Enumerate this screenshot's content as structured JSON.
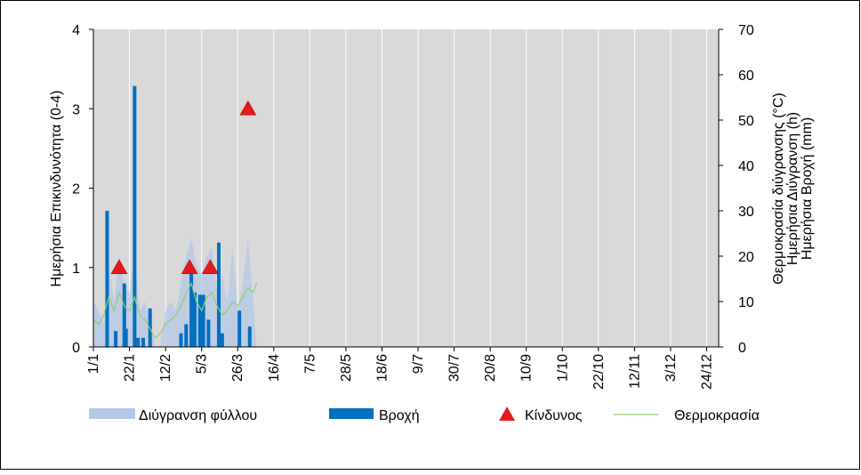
{
  "chart_data": {
    "type": "combo",
    "ylabel": "Ημερήσια Επικινδυνότητα (0-4)",
    "y2label": [
      "Θερμοκρασία διύγρανσης (°C)",
      "Ημερήσια Διύγρανση (h)",
      "Ημερήσια Βροχή (mm)"
    ],
    "xlim": [
      "1/1",
      "31/12"
    ],
    "xticks": [
      "1/1",
      "22/1",
      "12/2",
      "5/3",
      "26/3",
      "16/4",
      "7/5",
      "28/5",
      "18/6",
      "9/7",
      "30/7",
      "20/8",
      "10/9",
      "1/10",
      "22/10",
      "12/11",
      "3/12",
      "24/12"
    ],
    "ylim": [
      0,
      4
    ],
    "yticks": [
      0,
      1,
      2,
      3,
      4
    ],
    "y2lim": [
      0,
      70
    ],
    "y2ticks": [
      0,
      10,
      20,
      30,
      40,
      50,
      60,
      70
    ],
    "grid": true,
    "legend": "bottom",
    "series": [
      {
        "name": "Διύγρανση φύλλου",
        "type": "area",
        "color": "#b4c7e7",
        "axis": "y2",
        "x": [
          "1/1",
          "4/1",
          "7/1",
          "10/1",
          "13/1",
          "16/1",
          "19/1",
          "22/1",
          "25/1",
          "28/1",
          "31/1",
          "3/2",
          "6/2",
          "9/2",
          "12/2",
          "15/2",
          "18/2",
          "21/2",
          "24/2",
          "27/2",
          "2/3",
          "5/3",
          "8/3",
          "11/3",
          "14/3",
          "17/3",
          "20/3",
          "23/3",
          "26/3",
          "29/3",
          "1/4",
          "4/4",
          "6/4"
        ],
        "values": [
          10,
          8,
          5,
          18,
          10,
          20,
          14,
          12,
          20,
          8,
          10,
          6,
          0,
          0,
          8,
          10,
          8,
          14,
          20,
          24,
          18,
          16,
          20,
          22,
          12,
          16,
          10,
          22,
          8,
          14,
          24,
          10,
          0
        ]
      },
      {
        "name": "Βροχή",
        "type": "bar",
        "color": "#0070c0",
        "axis": "y2",
        "x": [
          "9/1",
          "14/1",
          "19/1",
          "20/1",
          "25/1",
          "27/1",
          "30/1",
          "3/2",
          "21/2",
          "24/2",
          "27/2",
          "1/3",
          "4/3",
          "6/3",
          "9/3",
          "15/3",
          "17/3",
          "27/3",
          "2/4"
        ],
        "values": [
          30,
          3.5,
          14,
          4,
          57.5,
          2,
          2,
          8.5,
          3,
          5,
          17,
          12,
          11.5,
          11.5,
          6,
          23,
          3,
          8,
          4.5
        ]
      },
      {
        "name": "Κίνδυνος",
        "type": "scatter",
        "color": "#e31a1c",
        "axis": "y",
        "x": [
          "16/1",
          "26/2",
          "10/3",
          "1/4"
        ],
        "values": [
          1,
          1,
          1,
          3
        ]
      },
      {
        "name": "Θερμοκρασία",
        "type": "line",
        "color": "#8fd16a",
        "axis": "y2",
        "x": [
          "1/1",
          "4/1",
          "7/1",
          "10/1",
          "13/1",
          "16/1",
          "19/1",
          "22/1",
          "25/1",
          "28/1",
          "31/1",
          "3/2",
          "6/2",
          "9/2",
          "12/2",
          "15/2",
          "18/2",
          "21/2",
          "24/2",
          "27/2",
          "2/3",
          "5/3",
          "8/3",
          "11/3",
          "14/3",
          "17/3",
          "20/3",
          "23/3",
          "26/3",
          "29/3",
          "1/4",
          "4/4",
          "6/4"
        ],
        "values": [
          6,
          5,
          7,
          11,
          8,
          12,
          9,
          8,
          11,
          7,
          6,
          4,
          2,
          3,
          5,
          6,
          7,
          9,
          12,
          14,
          10,
          8,
          11,
          12,
          9,
          7,
          8,
          10,
          9,
          11,
          13,
          12,
          14
        ]
      }
    ]
  }
}
